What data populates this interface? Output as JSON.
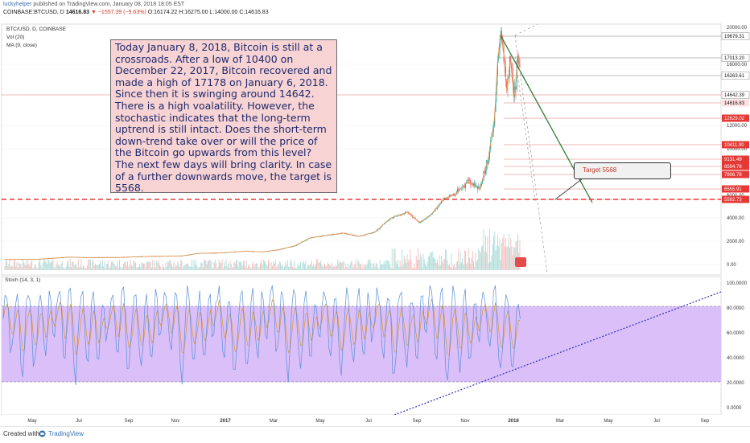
{
  "header": {
    "author": "luckyhelper",
    "published": "published on TradingView.com, January 08, 2018 18:05 EST",
    "symbol": "COINBASE:BTCUSD, D",
    "last_price": "14616.83",
    "change": "▼ −1557.39 (−9.63%)",
    "ohlc": "O:16174.22 H:16275.00 L:14000.00 C:14616.83"
  },
  "pane_labels": {
    "symbol": "BTC/USD, D, COINBASE",
    "volume": "Vol (20)",
    "ma": "MA (9, close)",
    "stoch": "Stoch (14, 3, 1)"
  },
  "annotation": {
    "text": "Today January 8, 2018, Bitcoin is still at a crossroads. After a low of 10400 on December 22, 2017, Bitcoin recovered and made a high of 17178 on January 6, 2018. Since then it is swinging around 14642. There is a high voalatility. However, the stochastic indicates that the long-term uptrend is still intact. Does the short-term down-trend take over or will the price of the Bitcoin go upwards from this level? The next few days will bring clarity. In case of a further downwards move, the target is 5568.",
    "target_label": "Target 5568"
  },
  "footer": {
    "created_with": "Created with",
    "brand": "TradingView"
  },
  "colors": {
    "candle_up": "#26a69a",
    "candle_down": "#ef5350",
    "ma": "#e8934a",
    "stoch_fill": "#d6b8f8",
    "stoch_k": "#5a8fd8",
    "stoch_d": "#e0962a",
    "trend_down": "#2e7d32",
    "trend_up": "#2b2bb8",
    "target": "#e53935"
  },
  "chart_data": [
    {
      "type": "candlestick",
      "title": "BTC/USD, D, COINBASE",
      "x_ticks": [
        "May",
        "Jul",
        "Sep",
        "Nov",
        "2017",
        "Mar",
        "May",
        "Jul",
        "Sep",
        "Nov",
        "2018",
        "Mar",
        "May",
        "Jul",
        "Sep"
      ],
      "y_ticks": [
        "20000.00",
        "16000.00",
        "12000.00",
        "10000.00",
        "6000.00",
        "4000.00",
        "2000.00",
        "0.00"
      ],
      "price_path": [
        [
          0,
          440
        ],
        [
          40,
          450
        ],
        [
          80,
          640
        ],
        [
          100,
          600
        ],
        [
          140,
          610
        ],
        [
          180,
          700
        ],
        [
          220,
          740
        ],
        [
          240,
          960
        ],
        [
          270,
          1000
        ],
        [
          300,
          1150
        ],
        [
          320,
          1080
        ],
        [
          340,
          1270
        ],
        [
          360,
          1600
        ],
        [
          380,
          2300
        ],
        [
          400,
          2500
        ],
        [
          420,
          2700
        ],
        [
          440,
          2400
        ],
        [
          460,
          2800
        ],
        [
          480,
          4000
        ],
        [
          500,
          4500
        ],
        [
          515,
          3600
        ],
        [
          530,
          4300
        ],
        [
          545,
          5700
        ],
        [
          560,
          6100
        ],
        [
          575,
          7200
        ],
        [
          590,
          6500
        ],
        [
          600,
          9000
        ],
        [
          608,
          12000
        ],
        [
          612,
          16000
        ],
        [
          616,
          19500
        ],
        [
          620,
          17000
        ],
        [
          624,
          14000
        ],
        [
          628,
          16500
        ],
        [
          633,
          13500
        ],
        [
          638,
          17100
        ],
        [
          642,
          14616
        ]
      ],
      "price_levels": [
        "19679.31",
        "17013.20",
        "16263.61",
        "14642.39",
        "14616.83",
        "12629.02",
        "10411.90",
        "9131.49",
        "8594.78",
        "7806.78",
        "6555.91",
        "5592.73"
      ],
      "target_level": 5568
    },
    {
      "type": "line",
      "title": "Stoch (14, 3, 1)",
      "y_ticks": [
        "100.0000",
        "80.0000",
        "60.0000",
        "40.0000",
        "20.0000",
        "0.0000"
      ],
      "ylim": [
        0,
        100
      ],
      "upper_band": 80,
      "lower_band": 20,
      "series": [
        {
          "name": "Stoch %K",
          "pattern_values": [
            70,
            85,
            97,
            90,
            60,
            35,
            55,
            80,
            95,
            88,
            45,
            20,
            30,
            65,
            92,
            97,
            78,
            50,
            28,
            40,
            72,
            94,
            86,
            58,
            33,
            48,
            82,
            96,
            75,
            42
          ]
        }
      ]
    }
  ]
}
